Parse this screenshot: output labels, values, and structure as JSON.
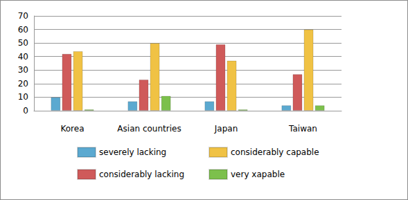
{
  "chart_data": {
    "type": "bar",
    "categories": [
      "Korea",
      "Asian countries",
      "Japan",
      "Taiwan"
    ],
    "series": [
      {
        "name": "severely lacking",
        "color": "#5ba9d0",
        "values": [
          10,
          7,
          7,
          4
        ]
      },
      {
        "name": "considerably lacking",
        "color": "#cf5a5a",
        "values": [
          42,
          23,
          49,
          27
        ]
      },
      {
        "name": "considerably capable",
        "color": "#f0c244",
        "values": [
          44,
          50,
          37,
          60
        ]
      },
      {
        "name": "very xapable",
        "color": "#7cc04c",
        "values": [
          1,
          11,
          1,
          4
        ]
      }
    ],
    "ylim": [
      0,
      70
    ],
    "yticks": [
      0,
      10,
      20,
      30,
      40,
      50,
      60,
      70
    ],
    "grid": true,
    "legend": "bottom"
  }
}
